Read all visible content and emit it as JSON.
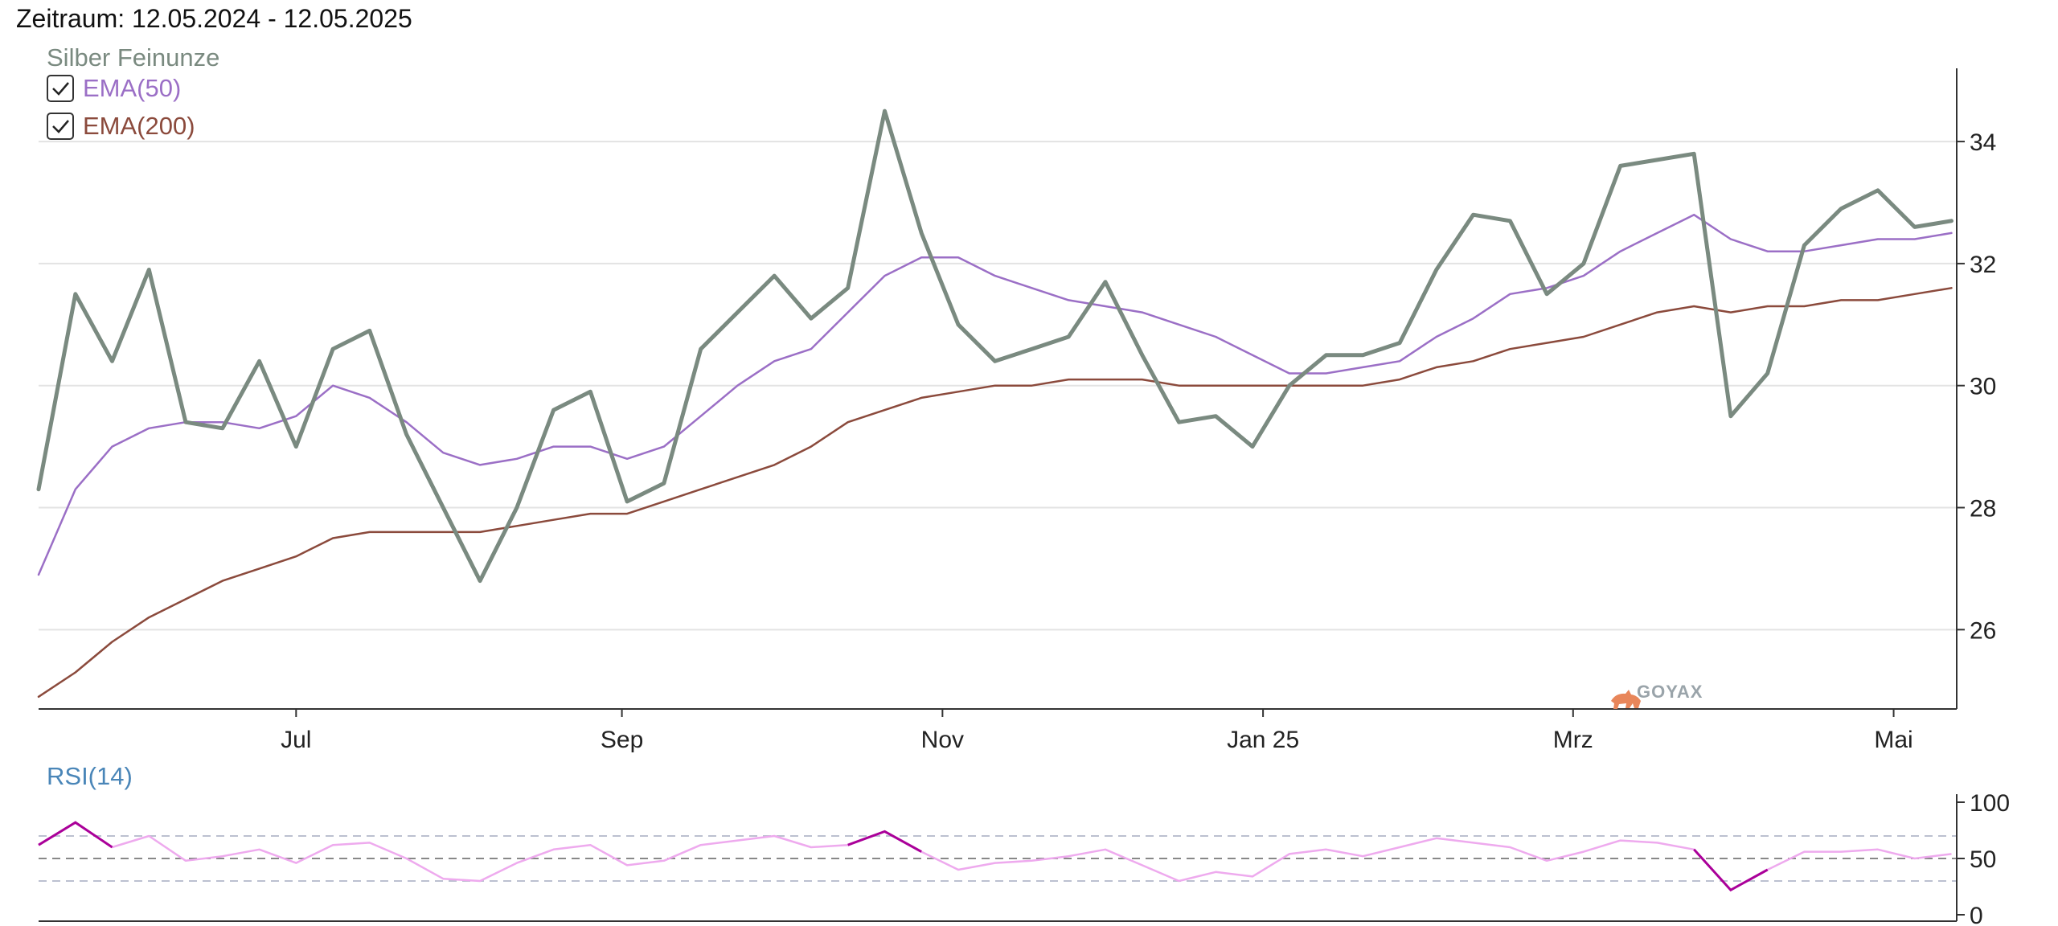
{
  "header": {
    "period_label": "Zeitraum: 12.05.2024 - 12.05.2025"
  },
  "logo": {
    "text": "GOYAX"
  },
  "colors": {
    "price": "#7a8a80",
    "ema50": "#9b6fc6",
    "ema200": "#8b4a3c",
    "rsi": "#eeaaee",
    "rsi_extreme": "#aa0099",
    "rsi_label": "#4a86b8",
    "grid": "#e3e3e3"
  },
  "chart_data": [
    {
      "type": "line",
      "ylim": [
        24.7,
        35.2
      ],
      "yticks": [
        "26",
        "28",
        "30",
        "32",
        "34"
      ],
      "xticks": [
        "Jul",
        "Sep",
        "Nov",
        "Jan 25",
        "Mrz",
        "Mai"
      ],
      "grid": true,
      "legend_placement": "top-left",
      "x": [
        "2024-05-13",
        "2024-05-20",
        "2024-05-27",
        "2024-06-03",
        "2024-06-10",
        "2024-06-17",
        "2024-06-24",
        "2024-07-01",
        "2024-07-08",
        "2024-07-15",
        "2024-07-22",
        "2024-07-29",
        "2024-08-05",
        "2024-08-12",
        "2024-08-19",
        "2024-08-26",
        "2024-09-02",
        "2024-09-09",
        "2024-09-16",
        "2024-09-23",
        "2024-09-30",
        "2024-10-07",
        "2024-10-14",
        "2024-10-21",
        "2024-10-28",
        "2024-11-04",
        "2024-11-11",
        "2024-11-18",
        "2024-11-25",
        "2024-12-02",
        "2024-12-09",
        "2024-12-16",
        "2024-12-23",
        "2024-12-30",
        "2025-01-06",
        "2025-01-13",
        "2025-01-20",
        "2025-01-27",
        "2025-02-03",
        "2025-02-10",
        "2025-02-17",
        "2025-02-24",
        "2025-03-03",
        "2025-03-10",
        "2025-03-17",
        "2025-03-24",
        "2025-03-31",
        "2025-04-07",
        "2025-04-14",
        "2025-04-21",
        "2025-04-28",
        "2025-05-05",
        "2025-05-12"
      ],
      "series": [
        {
          "name": "Silber Feinunze",
          "values": [
            28.3,
            31.5,
            30.4,
            31.9,
            29.4,
            29.3,
            30.4,
            29.0,
            30.6,
            30.9,
            29.2,
            28.0,
            26.8,
            28.0,
            29.6,
            29.9,
            28.1,
            28.4,
            30.6,
            31.2,
            31.8,
            31.1,
            31.6,
            34.5,
            32.5,
            31.0,
            30.4,
            30.6,
            30.8,
            31.7,
            30.5,
            29.4,
            29.5,
            29.0,
            30.0,
            30.5,
            30.5,
            30.7,
            31.9,
            32.8,
            32.7,
            31.5,
            32.0,
            33.6,
            33.7,
            33.8,
            29.5,
            30.2,
            32.3,
            32.9,
            33.2,
            32.6,
            32.7
          ]
        },
        {
          "name": "EMA(50)",
          "values": [
            26.9,
            28.3,
            29.0,
            29.3,
            29.4,
            29.4,
            29.3,
            29.5,
            30.0,
            29.8,
            29.4,
            28.9,
            28.7,
            28.8,
            29.0,
            29.0,
            28.8,
            29.0,
            29.5,
            30.0,
            30.4,
            30.6,
            31.2,
            31.8,
            32.1,
            32.1,
            31.8,
            31.6,
            31.4,
            31.3,
            31.2,
            31.0,
            30.8,
            30.5,
            30.2,
            30.2,
            30.3,
            30.4,
            30.8,
            31.1,
            31.5,
            31.6,
            31.8,
            32.2,
            32.5,
            32.8,
            32.4,
            32.2,
            32.2,
            32.3,
            32.4,
            32.4,
            32.5
          ]
        },
        {
          "name": "EMA(200)",
          "values": [
            24.9,
            25.3,
            25.8,
            26.2,
            26.5,
            26.8,
            27.0,
            27.2,
            27.5,
            27.6,
            27.6,
            27.6,
            27.6,
            27.7,
            27.8,
            27.9,
            27.9,
            28.1,
            28.3,
            28.5,
            28.7,
            29.0,
            29.4,
            29.6,
            29.8,
            29.9,
            30.0,
            30.0,
            30.1,
            30.1,
            30.1,
            30.0,
            30.0,
            30.0,
            30.0,
            30.0,
            30.0,
            30.1,
            30.3,
            30.4,
            30.6,
            30.7,
            30.8,
            31.0,
            31.2,
            31.3,
            31.2,
            31.3,
            31.3,
            31.4,
            31.4,
            31.5,
            31.6
          ]
        }
      ]
    },
    {
      "type": "line",
      "ylim": [
        0,
        100
      ],
      "yticks": [
        "0",
        "50",
        "100"
      ],
      "reference_lines": [
        30,
        50,
        70
      ],
      "legend_placement": "top-left",
      "x": [
        "2024-05-13",
        "2024-05-20",
        "2024-05-27",
        "2024-06-03",
        "2024-06-10",
        "2024-06-17",
        "2024-06-24",
        "2024-07-01",
        "2024-07-08",
        "2024-07-15",
        "2024-07-22",
        "2024-07-29",
        "2024-08-05",
        "2024-08-12",
        "2024-08-19",
        "2024-08-26",
        "2024-09-02",
        "2024-09-09",
        "2024-09-16",
        "2024-09-23",
        "2024-09-30",
        "2024-10-07",
        "2024-10-14",
        "2024-10-21",
        "2024-10-28",
        "2024-11-04",
        "2024-11-11",
        "2024-11-18",
        "2024-11-25",
        "2024-12-02",
        "2024-12-09",
        "2024-12-16",
        "2024-12-23",
        "2024-12-30",
        "2025-01-06",
        "2025-01-13",
        "2025-01-20",
        "2025-01-27",
        "2025-02-03",
        "2025-02-10",
        "2025-02-17",
        "2025-02-24",
        "2025-03-03",
        "2025-03-10",
        "2025-03-17",
        "2025-03-24",
        "2025-03-31",
        "2025-04-07",
        "2025-04-14",
        "2025-04-21",
        "2025-04-28",
        "2025-05-05",
        "2025-05-12"
      ],
      "series": [
        {
          "name": "RSI(14)",
          "values": [
            62,
            82,
            60,
            70,
            48,
            52,
            58,
            46,
            62,
            64,
            50,
            32,
            30,
            46,
            58,
            62,
            44,
            48,
            62,
            66,
            70,
            60,
            62,
            74,
            56,
            40,
            46,
            48,
            52,
            58,
            44,
            30,
            38,
            34,
            54,
            58,
            52,
            60,
            68,
            64,
            60,
            48,
            56,
            66,
            64,
            58,
            22,
            40,
            56,
            56,
            58,
            50,
            54
          ]
        }
      ]
    }
  ]
}
